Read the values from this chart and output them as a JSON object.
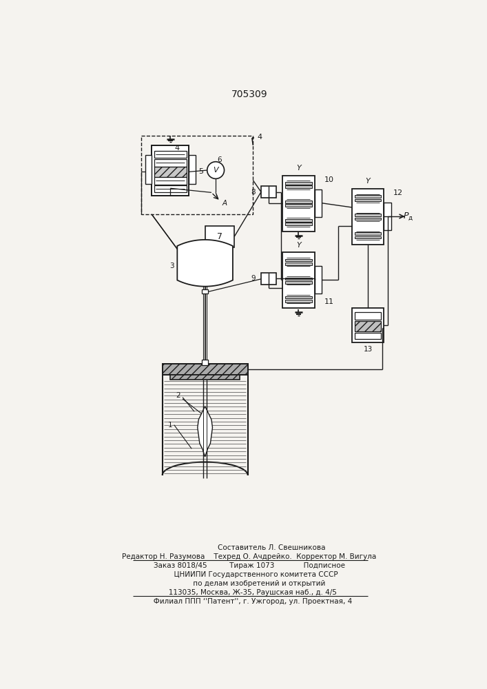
{
  "title": "705309",
  "bg_color": "#f5f3ef",
  "line_color": "#1a1a1a",
  "footer_lines": [
    "                    Составитель Л. Свешникова",
    "Редактор Н. Разумова    Техред О. Ачдрейко.  Корректор М. Вигула",
    "Заказ 8018/45          Тираж 1073             Подписное",
    "      ЦНИИПИ Государственного комитета СССР",
    "         по делам изобретений и открытий",
    "   113035, Москва, Ж-35, Раушская наб., д. 4/5",
    "   Филиал ППП ‘'Патент'', г. Ужгород, ул. Проектная, 4"
  ]
}
